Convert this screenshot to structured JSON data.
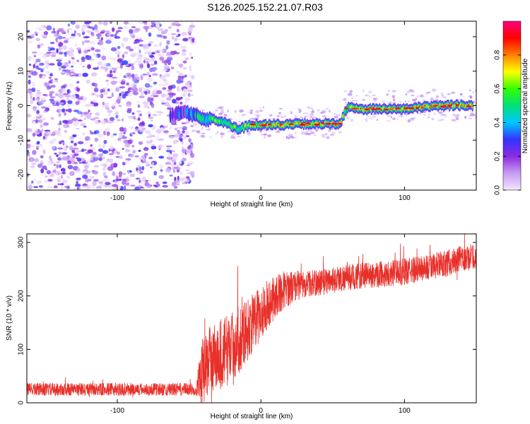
{
  "title": "S126.2025.152.21.07.R03",
  "colors": {
    "snr_line": "#e8302a",
    "scatter_purple": "#7a1ee6",
    "frame": "#000000"
  },
  "chart_data": [
    {
      "type": "heatmap",
      "title": "S126.2025.152.21.07.R03",
      "xlabel": "Height of straight line (km)",
      "ylabel": "Frequency (Hz)",
      "xlim": [
        -163,
        150
      ],
      "ylim": [
        -24.5,
        24.5
      ],
      "x_ticks": [
        -100,
        0,
        100
      ],
      "y_ticks": [
        -20,
        -10,
        0,
        10,
        20
      ],
      "colorbar": {
        "label": "Normalized spectral amplitude",
        "range": [
          0,
          1
        ],
        "ticks": [
          0.0,
          0.2,
          0.4,
          0.6,
          0.8
        ],
        "tick_labels": [
          "0.0",
          "0.2",
          "0.4",
          "0.6",
          "0.8"
        ],
        "colormap": [
          "#f2e6ff",
          "#c79cf2",
          "#8a2be2",
          "#3333ff",
          "#00c8ff",
          "#00e07a",
          "#33ff00",
          "#ffff00",
          "#ff8000",
          "#ff0000",
          "#ff0080"
        ]
      },
      "noise_region": {
        "x_range": [
          -163,
          -55
        ],
        "f_range": [
          -24.5,
          24.5
        ],
        "amplitude": 0.25
      },
      "ridge": [
        {
          "x": -63,
          "f": -3,
          "a": 0.15
        },
        {
          "x": -58,
          "f": -2,
          "a": 0.3
        },
        {
          "x": -52,
          "f": -2,
          "a": 0.25
        },
        {
          "x": -45,
          "f": -3,
          "a": 0.4
        },
        {
          "x": -38,
          "f": -4,
          "a": 0.5
        },
        {
          "x": -32,
          "f": -4,
          "a": 0.6
        },
        {
          "x": -25,
          "f": -5,
          "a": 0.55
        },
        {
          "x": -20,
          "f": -6,
          "a": 0.6
        },
        {
          "x": -15,
          "f": -7,
          "a": 0.55
        },
        {
          "x": -10,
          "f": -6,
          "a": 0.6
        },
        {
          "x": -5,
          "f": -5.5,
          "a": 0.7
        },
        {
          "x": 0,
          "f": -5.5,
          "a": 0.75
        },
        {
          "x": 5,
          "f": -5.5,
          "a": 0.7
        },
        {
          "x": 10,
          "f": -5.5,
          "a": 0.75
        },
        {
          "x": 20,
          "f": -5.5,
          "a": 0.7
        },
        {
          "x": 30,
          "f": -5.3,
          "a": 0.8
        },
        {
          "x": 40,
          "f": -5.3,
          "a": 0.75
        },
        {
          "x": 50,
          "f": -5.2,
          "a": 0.7
        },
        {
          "x": 55,
          "f": -5.5,
          "a": 0.8
        },
        {
          "x": 60,
          "f": -0.5,
          "a": 0.6
        },
        {
          "x": 70,
          "f": -1,
          "a": 0.8
        },
        {
          "x": 80,
          "f": -1,
          "a": 0.75
        },
        {
          "x": 90,
          "f": -1,
          "a": 0.8
        },
        {
          "x": 100,
          "f": -1,
          "a": 0.75
        },
        {
          "x": 110,
          "f": -0.5,
          "a": 0.8
        },
        {
          "x": 120,
          "f": -0.3,
          "a": 0.8
        },
        {
          "x": 130,
          "f": 0,
          "a": 0.8
        },
        {
          "x": 140,
          "f": 0.2,
          "a": 0.75
        },
        {
          "x": 148,
          "f": 0,
          "a": 0.8
        }
      ],
      "grid": false
    },
    {
      "type": "line",
      "xlabel": "Height of straight line (km)",
      "ylabel": "SNR (10 * v/v)",
      "xlim": [
        -163,
        150
      ],
      "ylim": [
        0,
        316
      ],
      "x_ticks": [
        -100,
        0,
        100
      ],
      "y_ticks": [
        0,
        100,
        200,
        300
      ],
      "trend": {
        "x": [
          -163,
          -60,
          -45,
          -42,
          -35,
          -25,
          -15,
          -5,
          5,
          15,
          25,
          40,
          60,
          80,
          100,
          120,
          150
        ],
        "y": [
          25,
          25,
          25,
          55,
          80,
          95,
          120,
          150,
          185,
          210,
          220,
          225,
          235,
          240,
          245,
          255,
          275
        ]
      },
      "noise_amplitude": {
        "x": [
          -163,
          -45,
          -42,
          -30,
          -10,
          10,
          30,
          150
        ],
        "y": [
          12,
          12,
          60,
          70,
          60,
          40,
          25,
          25
        ]
      },
      "grid": false
    }
  ]
}
